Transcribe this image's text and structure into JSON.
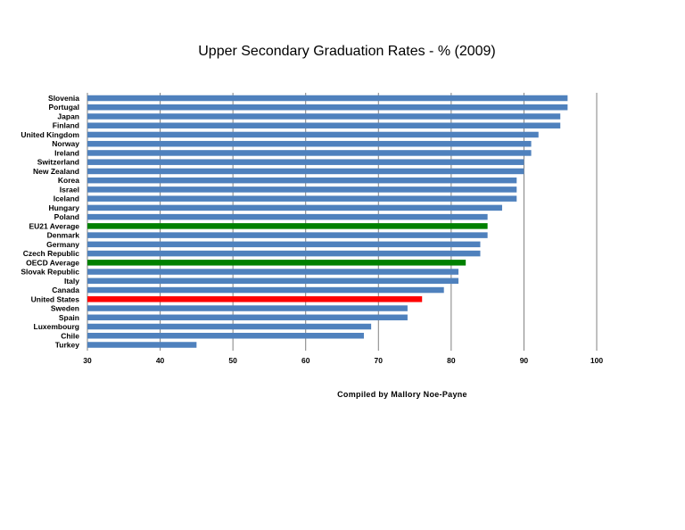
{
  "chart_data": {
    "type": "bar",
    "orientation": "horizontal",
    "title": "Upper Secondary Graduation Rates - % (2009)",
    "xlabel": "",
    "ylabel": "",
    "xlim": [
      30,
      100
    ],
    "x_ticks": [
      30,
      40,
      50,
      60,
      70,
      80,
      90,
      100
    ],
    "grid": "vertical major gridlines",
    "legend": "none",
    "annotation": "Compiled by Mallory Noe-Payne",
    "colors": {
      "default": "#4f81bd",
      "average": "#008000",
      "highlight": "#ff0000"
    },
    "categories": [
      "Slovenia",
      "Portugal",
      "Japan",
      "Finland",
      "United Kingdom",
      "Norway",
      "Ireland",
      "Switzerland",
      "New Zealand",
      "Korea",
      "Israel",
      "Iceland",
      "Hungary",
      "Poland",
      "EU21 Average",
      "Denmark",
      "Germany",
      "Czech Republic",
      "OECD Average",
      "Slovak Republic",
      "Italy",
      "Canada",
      "United States",
      "Sweden",
      "Spain",
      "Luxembourg",
      "Chile",
      "Turkey"
    ],
    "values": [
      96,
      96,
      95,
      95,
      92,
      91,
      91,
      90,
      90,
      89,
      89,
      89,
      87,
      85,
      85,
      85,
      84,
      84,
      82,
      81,
      81,
      79,
      76,
      74,
      74,
      69,
      68,
      45
    ],
    "bar_colors": [
      "#4f81bd",
      "#4f81bd",
      "#4f81bd",
      "#4f81bd",
      "#4f81bd",
      "#4f81bd",
      "#4f81bd",
      "#4f81bd",
      "#4f81bd",
      "#4f81bd",
      "#4f81bd",
      "#4f81bd",
      "#4f81bd",
      "#4f81bd",
      "#008000",
      "#4f81bd",
      "#4f81bd",
      "#4f81bd",
      "#008000",
      "#4f81bd",
      "#4f81bd",
      "#4f81bd",
      "#ff0000",
      "#4f81bd",
      "#4f81bd",
      "#4f81bd",
      "#4f81bd",
      "#4f81bd"
    ]
  }
}
